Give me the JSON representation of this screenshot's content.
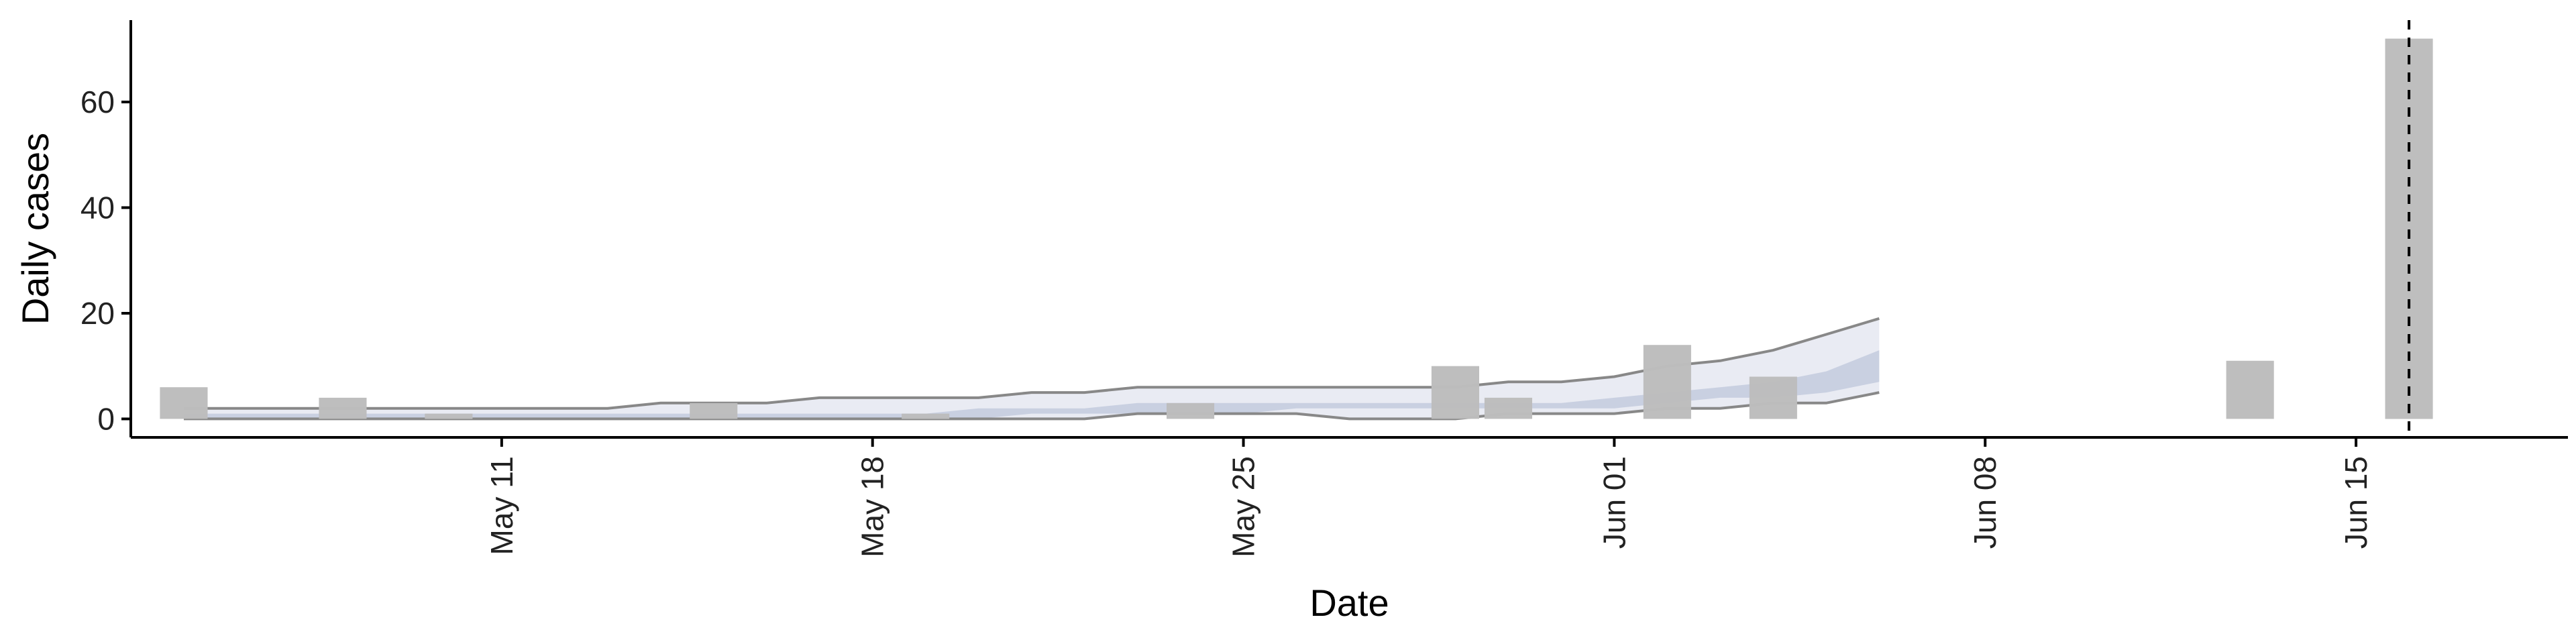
{
  "chart_data": {
    "type": "bar",
    "xlabel": "Date",
    "ylabel": "Daily cases",
    "x_range": [
      "2020-05-04",
      "2020-06-19"
    ],
    "ylim": [
      -3.5,
      75.5
    ],
    "x_ticks": [
      {
        "date": "2020-05-11",
        "label": "May 11"
      },
      {
        "date": "2020-05-18",
        "label": "May 18"
      },
      {
        "date": "2020-05-25",
        "label": "May 25"
      },
      {
        "date": "2020-06-01",
        "label": "Jun 01"
      },
      {
        "date": "2020-06-08",
        "label": "Jun 08"
      },
      {
        "date": "2020-06-15",
        "label": "Jun 15"
      }
    ],
    "y_ticks": [
      0,
      20,
      40,
      60
    ],
    "grid": false,
    "cutoff_date": "2020-06-16",
    "colors": {
      "bars": "#bdbdbd",
      "ribbon_outer": "#e9ebf3",
      "ribbon_inner": "#c9d0e1",
      "interval_lines": "#888888",
      "cutoff_line": "#000000"
    },
    "observed_cases": [
      {
        "date": "2020-05-05",
        "value": 6
      },
      {
        "date": "2020-05-08",
        "value": 4
      },
      {
        "date": "2020-05-10",
        "value": 1
      },
      {
        "date": "2020-05-15",
        "value": 3
      },
      {
        "date": "2020-05-19",
        "value": 1
      },
      {
        "date": "2020-05-24",
        "value": 3
      },
      {
        "date": "2020-05-29",
        "value": 10
      },
      {
        "date": "2020-05-30",
        "value": 4
      },
      {
        "date": "2020-06-02",
        "value": 14
      },
      {
        "date": "2020-06-04",
        "value": 8
      },
      {
        "date": "2020-06-13",
        "value": 11
      },
      {
        "date": "2020-06-16",
        "value": 72
      }
    ],
    "estimate": [
      {
        "date": "2020-05-05",
        "lower_90": 0,
        "lower_50": 0,
        "upper_50": 1,
        "upper_90": 2
      },
      {
        "date": "2020-05-06",
        "lower_90": 0,
        "lower_50": 0,
        "upper_50": 1,
        "upper_90": 2
      },
      {
        "date": "2020-05-07",
        "lower_90": 0,
        "lower_50": 0,
        "upper_50": 1,
        "upper_90": 2
      },
      {
        "date": "2020-05-08",
        "lower_90": 0,
        "lower_50": 0,
        "upper_50": 1,
        "upper_90": 2
      },
      {
        "date": "2020-05-09",
        "lower_90": 0,
        "lower_50": 0,
        "upper_50": 1,
        "upper_90": 2
      },
      {
        "date": "2020-05-10",
        "lower_90": 0,
        "lower_50": 0,
        "upper_50": 1,
        "upper_90": 2
      },
      {
        "date": "2020-05-11",
        "lower_90": 0,
        "lower_50": 0,
        "upper_50": 1,
        "upper_90": 2
      },
      {
        "date": "2020-05-12",
        "lower_90": 0,
        "lower_50": 0,
        "upper_50": 1,
        "upper_90": 2
      },
      {
        "date": "2020-05-13",
        "lower_90": 0,
        "lower_50": 0,
        "upper_50": 1,
        "upper_90": 2
      },
      {
        "date": "2020-05-14",
        "lower_90": 0,
        "lower_50": 0,
        "upper_50": 1,
        "upper_90": 3
      },
      {
        "date": "2020-05-15",
        "lower_90": 0,
        "lower_50": 0,
        "upper_50": 1,
        "upper_90": 3
      },
      {
        "date": "2020-05-16",
        "lower_90": 0,
        "lower_50": 0,
        "upper_50": 1,
        "upper_90": 3
      },
      {
        "date": "2020-05-17",
        "lower_90": 0,
        "lower_50": 0,
        "upper_50": 1,
        "upper_90": 4
      },
      {
        "date": "2020-05-18",
        "lower_90": 0,
        "lower_50": 0,
        "upper_50": 1,
        "upper_90": 4
      },
      {
        "date": "2020-05-19",
        "lower_90": 0,
        "lower_50": 0,
        "upper_50": 1,
        "upper_90": 4
      },
      {
        "date": "2020-05-20",
        "lower_90": 0,
        "lower_50": 0,
        "upper_50": 2,
        "upper_90": 4
      },
      {
        "date": "2020-05-21",
        "lower_90": 0,
        "lower_50": 1,
        "upper_50": 2,
        "upper_90": 5
      },
      {
        "date": "2020-05-22",
        "lower_90": 0,
        "lower_50": 1,
        "upper_50": 2,
        "upper_90": 5
      },
      {
        "date": "2020-05-23",
        "lower_90": 1,
        "lower_50": 1,
        "upper_50": 3,
        "upper_90": 6
      },
      {
        "date": "2020-05-24",
        "lower_90": 1,
        "lower_50": 1,
        "upper_50": 3,
        "upper_90": 6
      },
      {
        "date": "2020-05-25",
        "lower_90": 1,
        "lower_50": 1,
        "upper_50": 3,
        "upper_90": 6
      },
      {
        "date": "2020-05-26",
        "lower_90": 1,
        "lower_50": 2,
        "upper_50": 3,
        "upper_90": 6
      },
      {
        "date": "2020-05-27",
        "lower_90": 0,
        "lower_50": 2,
        "upper_50": 3,
        "upper_90": 6
      },
      {
        "date": "2020-05-28",
        "lower_90": 0,
        "lower_50": 2,
        "upper_50": 3,
        "upper_90": 6
      },
      {
        "date": "2020-05-29",
        "lower_90": 0,
        "lower_50": 2,
        "upper_50": 3,
        "upper_90": 6
      },
      {
        "date": "2020-05-30",
        "lower_90": 1,
        "lower_50": 2,
        "upper_50": 3,
        "upper_90": 7
      },
      {
        "date": "2020-05-31",
        "lower_90": 1,
        "lower_50": 2,
        "upper_50": 3,
        "upper_90": 7
      },
      {
        "date": "2020-06-01",
        "lower_90": 1,
        "lower_50": 2,
        "upper_50": 4,
        "upper_90": 8
      },
      {
        "date": "2020-06-02",
        "lower_90": 2,
        "lower_50": 3,
        "upper_50": 5,
        "upper_90": 10
      },
      {
        "date": "2020-06-03",
        "lower_90": 2,
        "lower_50": 4,
        "upper_50": 6,
        "upper_90": 11
      },
      {
        "date": "2020-06-04",
        "lower_90": 3,
        "lower_50": 4,
        "upper_50": 7,
        "upper_90": 13
      },
      {
        "date": "2020-06-05",
        "lower_90": 3,
        "lower_50": 5,
        "upper_50": 9,
        "upper_90": 16
      },
      {
        "date": "2020-06-06",
        "lower_90": 5,
        "lower_50": 7,
        "upper_50": 13,
        "upper_90": 19
      }
    ]
  }
}
